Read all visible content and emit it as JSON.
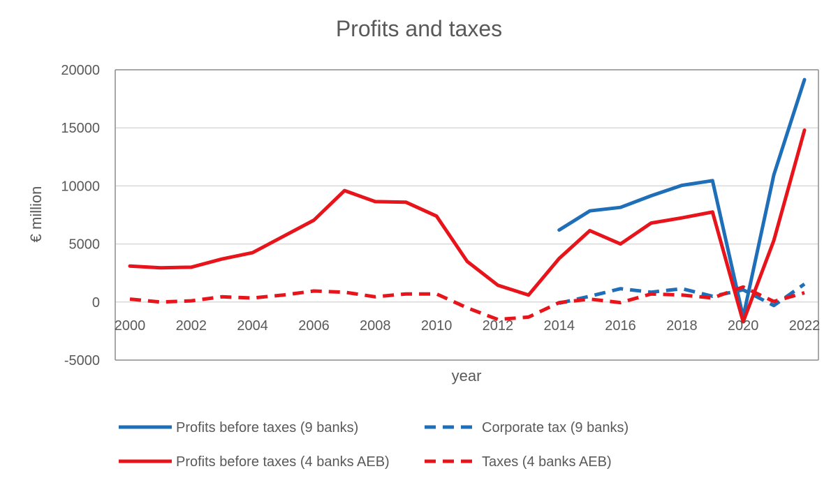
{
  "chart_data": {
    "type": "line",
    "title": "Profits and taxes",
    "xlabel": "year",
    "ylabel": "€ million",
    "ylim": [
      -5000,
      20000
    ],
    "yticks": [
      -5000,
      0,
      5000,
      10000,
      15000,
      20000
    ],
    "xticks": [
      2000,
      2002,
      2004,
      2006,
      2008,
      2010,
      2012,
      2014,
      2016,
      2018,
      2020,
      2022
    ],
    "xlim": [
      2000,
      2022
    ],
    "grid": true,
    "legend_position": "bottom",
    "series": [
      {
        "name": "Profits before taxes (9 banks)",
        "color": "#1f6fb8",
        "dash": "solid",
        "x": [
          2014,
          2015,
          2016,
          2017,
          2018,
          2019,
          2020,
          2021,
          2022
        ],
        "y": [
          6200,
          7850,
          8150,
          9150,
          10050,
          10450,
          -1300,
          10950,
          19150
        ]
      },
      {
        "name": "Corporate tax (9 banks)",
        "color": "#1f6fb8",
        "dash": "dashed",
        "x": [
          2014,
          2015,
          2016,
          2017,
          2018,
          2019,
          2020,
          2021,
          2022
        ],
        "y": [
          -100,
          500,
          1150,
          850,
          1150,
          500,
          1050,
          -300,
          1550
        ]
      },
      {
        "name": "Profits before taxes (4 banks AEB)",
        "color": "#e8141b",
        "dash": "solid",
        "x": [
          2000,
          2001,
          2002,
          2003,
          2004,
          2005,
          2006,
          2007,
          2008,
          2009,
          2010,
          2011,
          2012,
          2013,
          2014,
          2015,
          2016,
          2017,
          2018,
          2019,
          2020,
          2021,
          2022
        ],
        "y": [
          3100,
          2950,
          3000,
          3700,
          4250,
          5650,
          7050,
          9600,
          8650,
          8600,
          7400,
          3500,
          1450,
          600,
          3750,
          6150,
          5000,
          6800,
          7250,
          7750,
          -1700,
          5300,
          14800
        ]
      },
      {
        "name": "Taxes (4 banks AEB)",
        "color": "#e8141b",
        "dash": "dashed",
        "x": [
          2000,
          2001,
          2002,
          2003,
          2004,
          2005,
          2006,
          2007,
          2008,
          2009,
          2010,
          2011,
          2012,
          2013,
          2014,
          2015,
          2016,
          2017,
          2018,
          2019,
          2020,
          2021,
          2022
        ],
        "y": [
          250,
          0,
          100,
          450,
          350,
          600,
          950,
          850,
          450,
          700,
          700,
          -500,
          -1500,
          -1300,
          -50,
          250,
          -50,
          700,
          600,
          350,
          1300,
          50,
          800
        ]
      }
    ]
  }
}
